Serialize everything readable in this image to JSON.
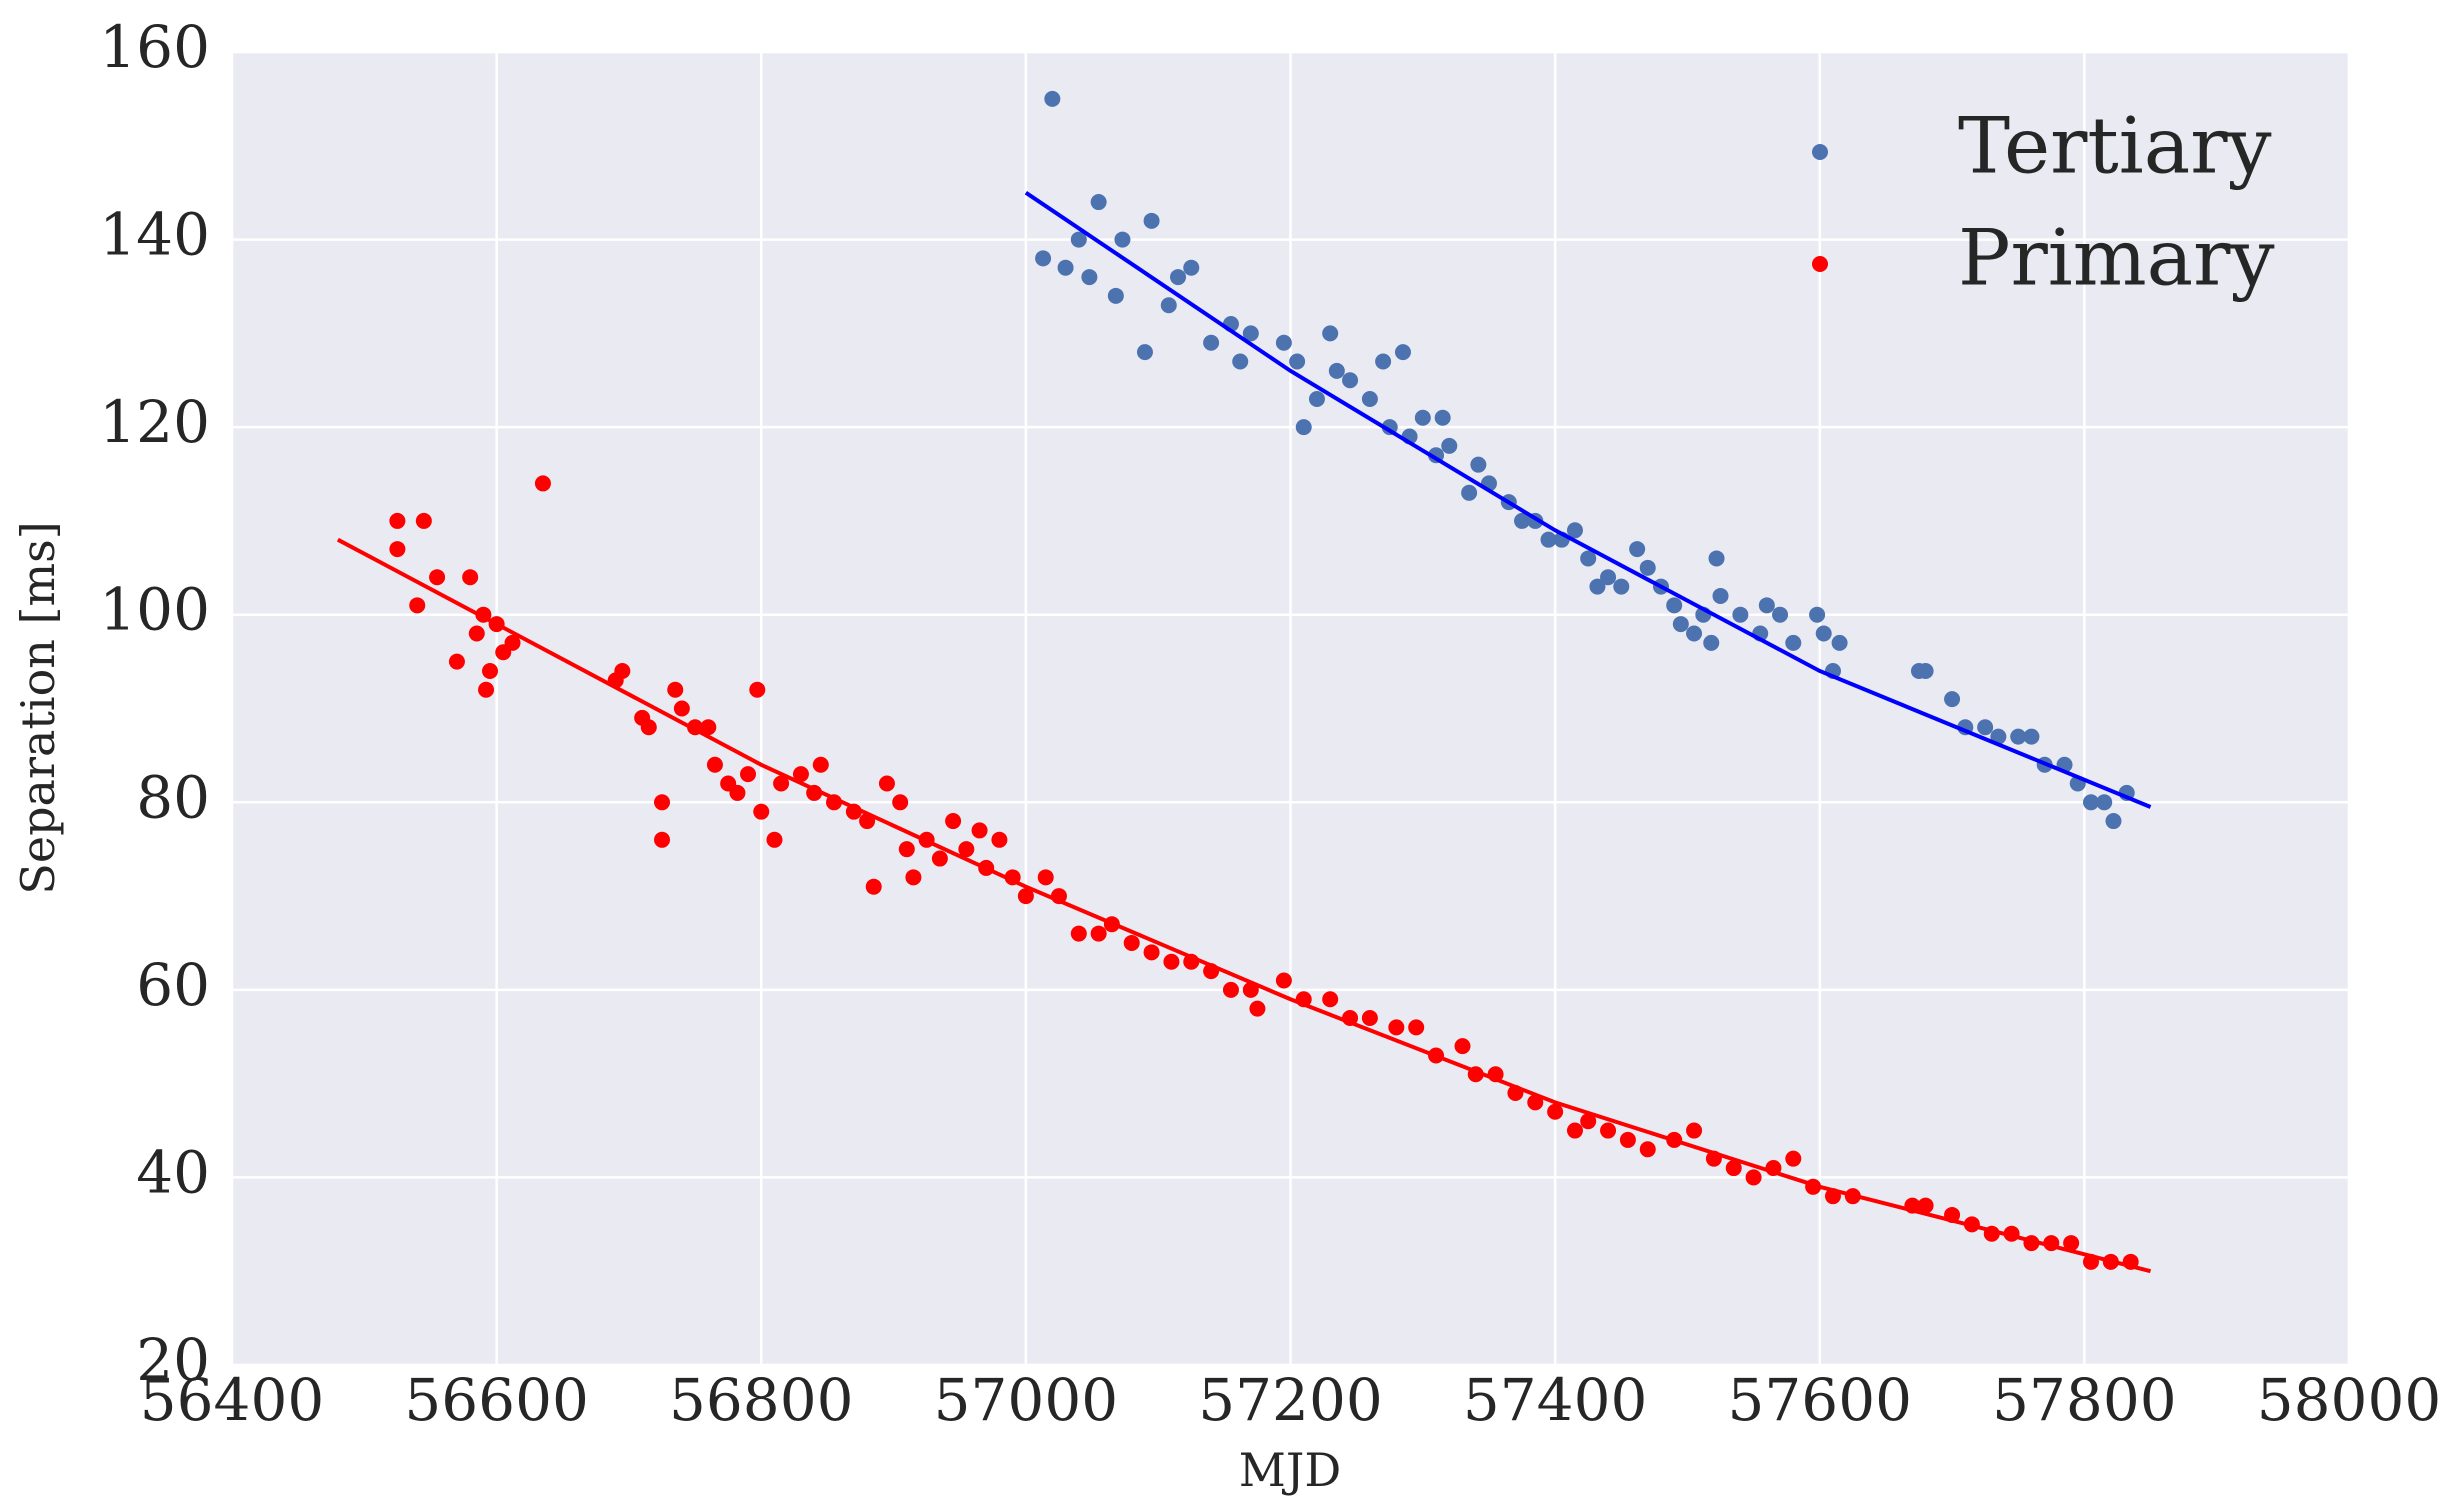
{
  "chart_data": {
    "type": "scatter",
    "xlabel": "MJD",
    "ylabel": "Separation [ms]",
    "xlim": [
      56400,
      58000
    ],
    "xticks": [
      56400,
      56600,
      56800,
      57000,
      57200,
      57400,
      57600,
      57800,
      58000
    ],
    "ylim": [
      20,
      160
    ],
    "yticks": [
      20,
      40,
      60,
      80,
      100,
      120,
      140,
      160
    ],
    "grid": true,
    "legend": "upper right",
    "series": [
      {
        "name": "Tertiary",
        "color": "#4c72b0",
        "x": [
          57020,
          57013,
          57030,
          57040,
          57048,
          57055,
          57068,
          57073,
          57090,
          57095,
          57108,
          57115,
          57125,
          57140,
          57155,
          57162,
          57170,
          57195,
          57205,
          57210,
          57220,
          57230,
          57235,
          57245,
          57260,
          57270,
          57275,
          57285,
          57290,
          57300,
          57310,
          57315,
          57320,
          57335,
          57342,
          57350,
          57365,
          57375,
          57385,
          57395,
          57405,
          57415,
          57425,
          57432,
          57440,
          57450,
          57462,
          57470,
          57480,
          57490,
          57495,
          57505,
          57512,
          57518,
          57522,
          57525,
          57540,
          57555,
          57560,
          57570,
          57580,
          57598,
          57603,
          57610,
          57615,
          57675,
          57680,
          57700,
          57710,
          57725,
          57735,
          57750,
          57760,
          57770,
          57785,
          57795,
          57805,
          57815,
          57822,
          57832
        ],
        "values": [
          155,
          138,
          137,
          140,
          136,
          144,
          134,
          140,
          128,
          142,
          133,
          136,
          137,
          129,
          131,
          127,
          130,
          129,
          127,
          120,
          123,
          130,
          126,
          125,
          123,
          127,
          120,
          128,
          119,
          121,
          117,
          121,
          118,
          113,
          116,
          114,
          112,
          110,
          110,
          108,
          108,
          109,
          106,
          103,
          104,
          103,
          107,
          105,
          103,
          101,
          99,
          98,
          100,
          97,
          106,
          102,
          100,
          98,
          101,
          100,
          97,
          100,
          98,
          94,
          97,
          94,
          94,
          91,
          88,
          88,
          87,
          87,
          87,
          84,
          84,
          82,
          80,
          80,
          78,
          81
        ],
        "fit": {
          "color": "#0000ff",
          "x": [
            57000,
            57200,
            57400,
            57600,
            57850
          ],
          "values": [
            145,
            126,
            109,
            94,
            79.5
          ]
        }
      },
      {
        "name": "Primary",
        "color": "#ff0000",
        "x": [
          56525,
          56525,
          56545,
          56540,
          56555,
          56570,
          56580,
          56585,
          56590,
          56592,
          56595,
          56600,
          56605,
          56612,
          56635,
          56690,
          56695,
          56710,
          56715,
          56725,
          56725,
          56735,
          56740,
          56750,
          56760,
          56765,
          56775,
          56782,
          56790,
          56797,
          56800,
          56810,
          56815,
          56830,
          56840,
          56845,
          56855,
          56870,
          56885,
          56880,
          56895,
          56905,
          56910,
          56915,
          56925,
          56935,
          56945,
          56955,
          56965,
          56970,
          56980,
          56990,
          57000,
          57015,
          57025,
          57040,
          57055,
          57065,
          57080,
          57095,
          57110,
          57125,
          57140,
          57155,
          57170,
          57175,
          57195,
          57210,
          57230,
          57245,
          57260,
          57280,
          57295,
          57310,
          57330,
          57340,
          57355,
          57370,
          57385,
          57400,
          57415,
          57425,
          57440,
          57455,
          57470,
          57490,
          57505,
          57520,
          57535,
          57550,
          57565,
          57580,
          57595,
          57610,
          57625,
          57670,
          57680,
          57700,
          57715,
          57730,
          57745,
          57760,
          57775,
          57790,
          57805,
          57820,
          57835
        ],
        "values": [
          110,
          107,
          110,
          101,
          104,
          95,
          104,
          98,
          100,
          92,
          94,
          99,
          96,
          97,
          114,
          93,
          94,
          89,
          88,
          80,
          76,
          92,
          90,
          88,
          88,
          84,
          82,
          81,
          83,
          92,
          79,
          76,
          82,
          83,
          81,
          84,
          80,
          79,
          71,
          78,
          82,
          80,
          75,
          72,
          76,
          74,
          78,
          75,
          77,
          73,
          76,
          72,
          70,
          72,
          70,
          66,
          66,
          67,
          65,
          64,
          63,
          63,
          62,
          60,
          60,
          58,
          61,
          59,
          59,
          57,
          57,
          56,
          56,
          53,
          54,
          51,
          51,
          49,
          48,
          47,
          45,
          46,
          45,
          44,
          43,
          44,
          45,
          42,
          41,
          40,
          41,
          42,
          39,
          38,
          38,
          37,
          37,
          36,
          35,
          34,
          34,
          33,
          33,
          33,
          31,
          31,
          31
        ],
        "fit": {
          "color": "#ff0000",
          "x": [
            56480,
            56600,
            56800,
            57000,
            57200,
            57400,
            57600,
            57850
          ],
          "values": [
            108,
            99,
            84,
            71,
            59,
            48,
            39,
            30
          ]
        }
      }
    ]
  }
}
